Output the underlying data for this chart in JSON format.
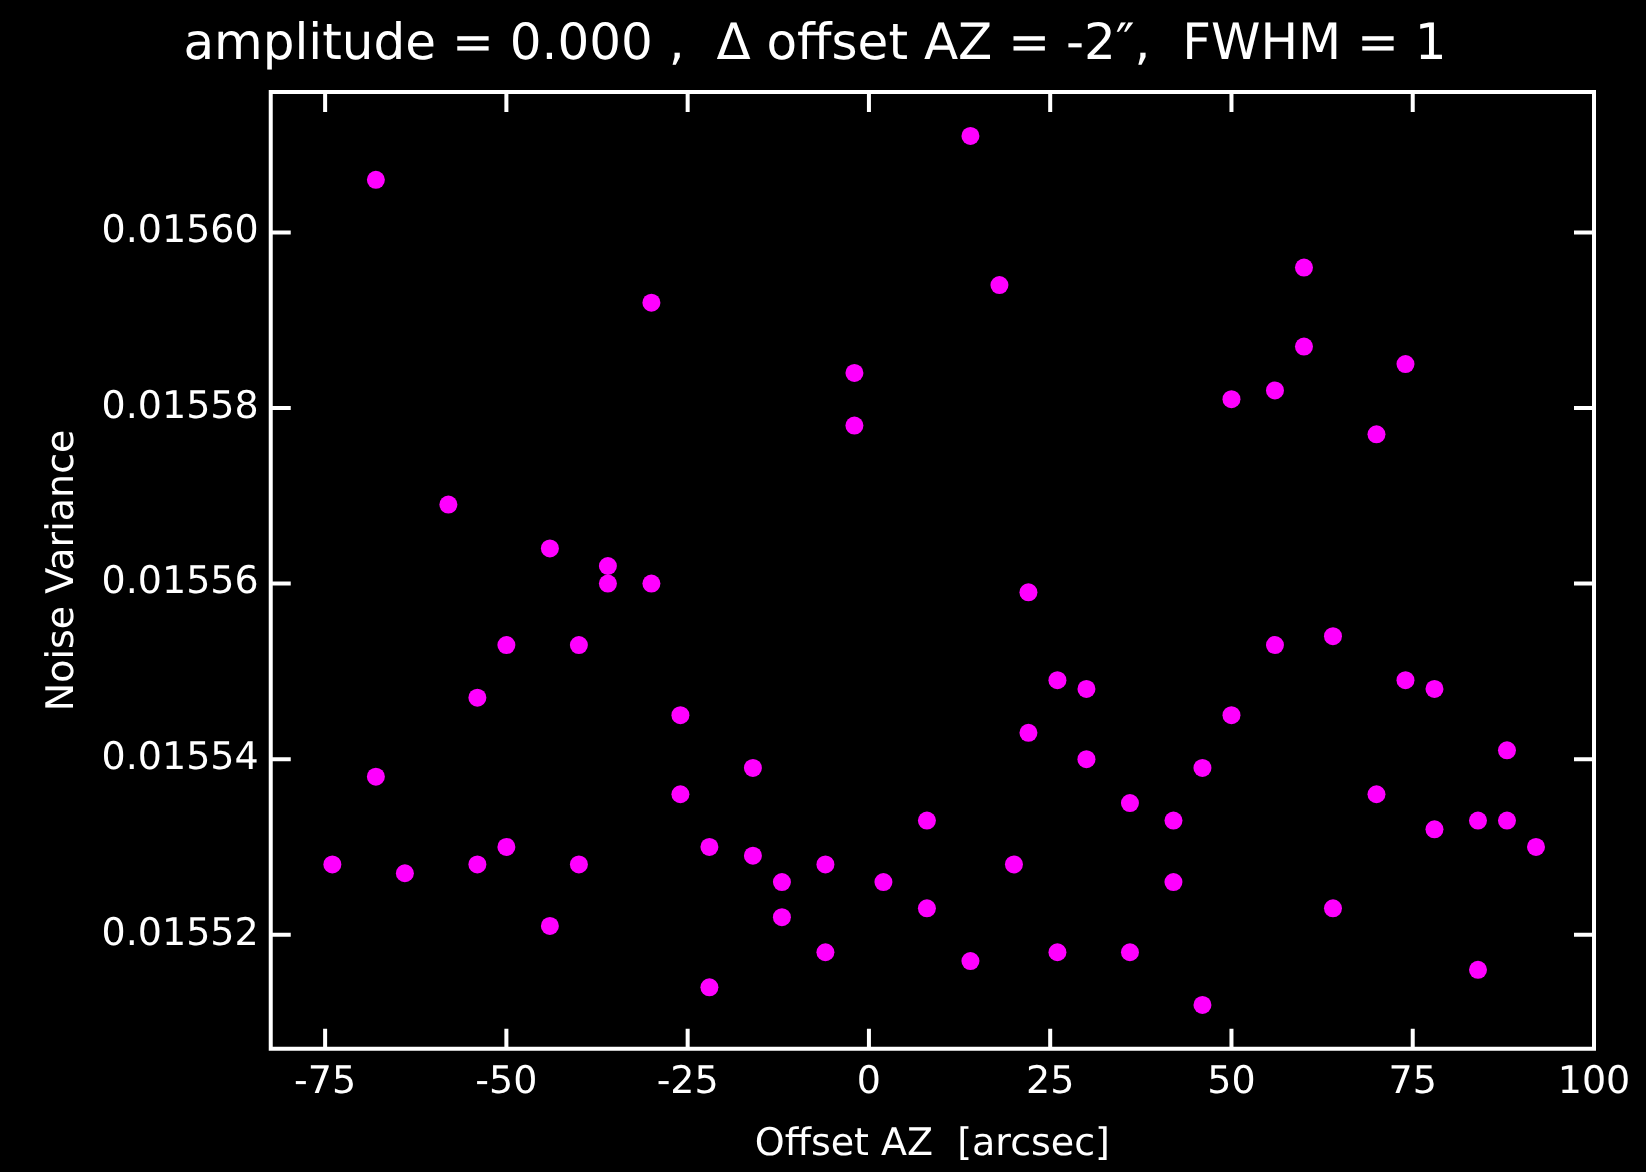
{
  "chart_data": {
    "type": "scatter",
    "title": "amplitude = 0.000 ,  Δ offset AZ = -2″,  FWHM = 1",
    "xlabel": "Offset AZ  [arcsec]",
    "ylabel": "Noise Variance",
    "marker": "circle",
    "grid": false,
    "legend": false,
    "xlim": [
      -82.5,
      100
    ],
    "xticks": [
      -75,
      -50,
      -25,
      0,
      25,
      50,
      75,
      100
    ],
    "ylim": [
      0.015507,
      0.015616
    ],
    "yticks": [
      {
        "value": 0.01552,
        "label": "0.01552"
      },
      {
        "value": 0.01554,
        "label": "0.01554"
      },
      {
        "value": 0.01556,
        "label": "0.01556"
      },
      {
        "value": 0.01558,
        "label": "0.01558"
      },
      {
        "value": 0.0156,
        "label": "0.01560"
      }
    ],
    "series": [
      {
        "color": "#ff00ff",
        "x": [
          -74,
          -68,
          -68,
          -64,
          -58,
          -54,
          -54,
          -50,
          -50,
          -44,
          -44,
          -40,
          -40,
          -36,
          -36,
          -30,
          -30,
          -26,
          -26,
          -22,
          -22,
          -16,
          -16,
          -12,
          -12,
          -6,
          -6,
          -2,
          -2,
          2,
          8,
          8,
          14,
          14,
          18,
          20,
          22,
          22,
          26,
          26,
          30,
          30,
          36,
          36,
          42,
          42,
          46,
          46,
          50,
          50,
          56,
          56,
          60,
          60,
          64,
          64,
          70,
          70,
          74,
          74,
          78,
          78,
          84,
          84,
          88,
          88,
          92
        ],
        "values": [
          0.015528,
          0.015606,
          0.015538,
          0.015527,
          0.015569,
          0.015547,
          0.015528,
          0.015553,
          0.01553,
          0.015564,
          0.015521,
          0.015553,
          0.015528,
          0.015562,
          0.01556,
          0.015592,
          0.01556,
          0.015545,
          0.015536,
          0.01553,
          0.015514,
          0.015539,
          0.015529,
          0.015526,
          0.015522,
          0.015528,
          0.015518,
          0.015584,
          0.015578,
          0.015526,
          0.015533,
          0.015523,
          0.015611,
          0.015517,
          0.015594,
          0.015528,
          0.015559,
          0.015543,
          0.015549,
          0.015518,
          0.015548,
          0.01554,
          0.015535,
          0.015518,
          0.015533,
          0.015526,
          0.015539,
          0.015512,
          0.015581,
          0.015545,
          0.015582,
          0.015553,
          0.015596,
          0.015587,
          0.015554,
          0.015523,
          0.015577,
          0.015536,
          0.015585,
          0.015549,
          0.015548,
          0.015532,
          0.015533,
          0.015516,
          0.015541,
          0.015533,
          0.01553
        ]
      }
    ]
  }
}
